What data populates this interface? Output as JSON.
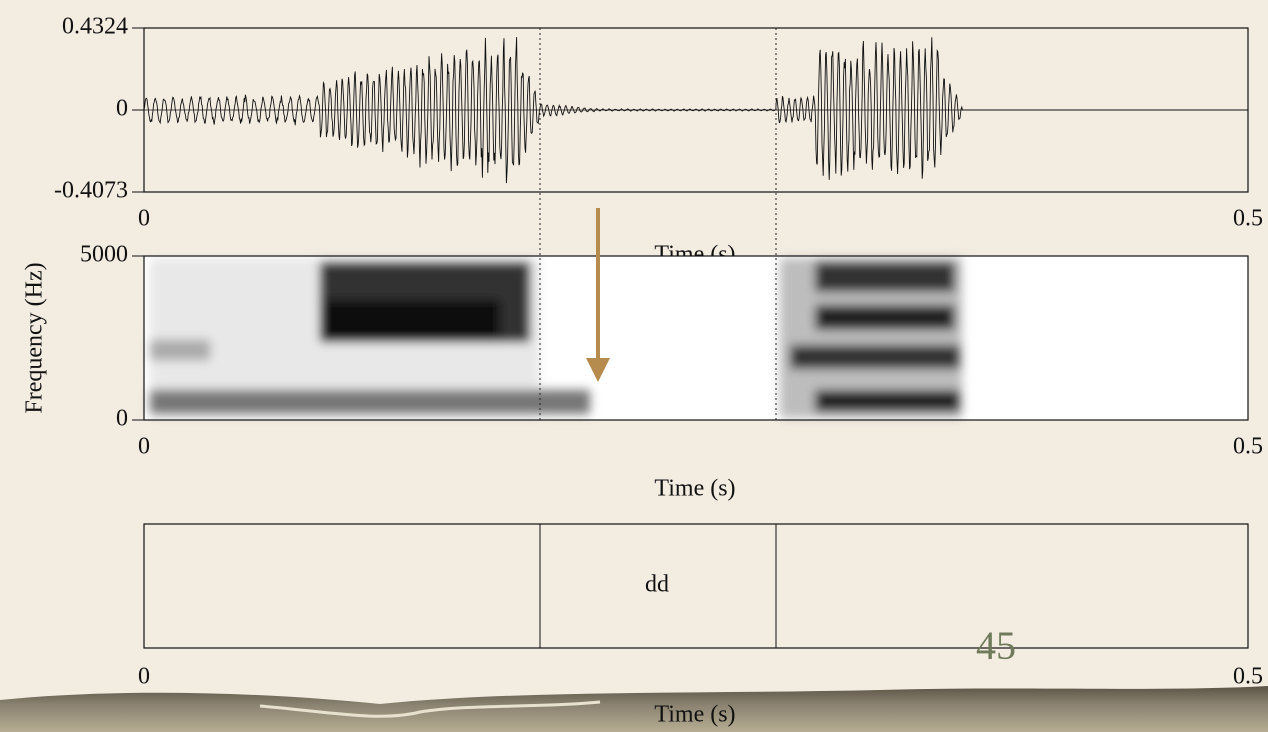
{
  "waveform": {
    "yticks": [
      "0.4324",
      "0",
      "-0.4073"
    ],
    "xticks": [
      "0",
      "0.5"
    ],
    "xlabel": "Time (s)"
  },
  "spectrogram": {
    "yticks": [
      "5000",
      "0"
    ],
    "ylabel": "Frequency (Hz)",
    "xticks": [
      "0",
      "0.5"
    ],
    "xlabel": "Time (s)"
  },
  "textgrid": {
    "interval_label": "dd",
    "xticks": [
      "0",
      "0.5"
    ],
    "xlabel": "Time (s)"
  },
  "slide_number": "45"
}
